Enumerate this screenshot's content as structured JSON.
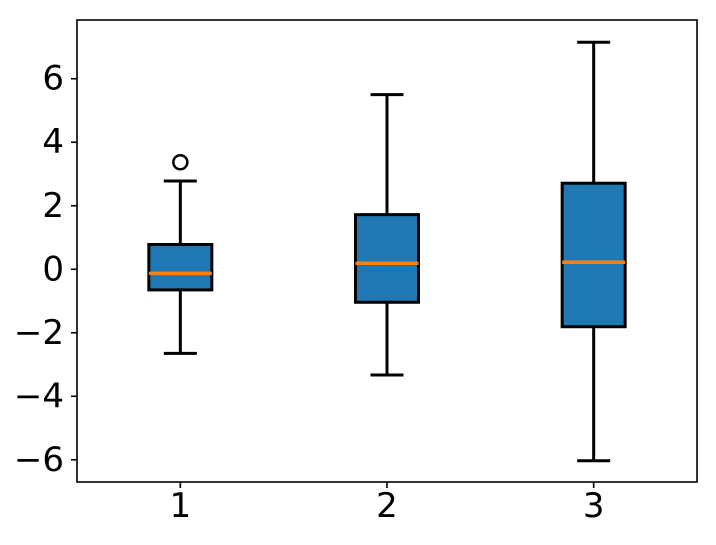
{
  "chart_data": {
    "type": "box",
    "title": "",
    "xlabel": "",
    "ylabel": "",
    "categories": [
      "1",
      "2",
      "3"
    ],
    "yticks": [
      -6,
      -4,
      -2,
      0,
      2,
      4,
      6
    ],
    "ytick_labels": [
      "−6",
      "−4",
      "−2",
      "0",
      "2",
      "4",
      "6"
    ],
    "ylim": [
      -6.7,
      7.85
    ],
    "grid": false,
    "legend": "none",
    "boxes": [
      {
        "label": "1",
        "whislo": -2.65,
        "q1": -0.65,
        "med": -0.13,
        "q3": 0.78,
        "whishi": 2.78,
        "fliers": [
          3.37
        ]
      },
      {
        "label": "2",
        "whislo": -3.33,
        "q1": -1.04,
        "med": 0.19,
        "q3": 1.72,
        "whishi": 5.5,
        "fliers": []
      },
      {
        "label": "3",
        "whislo": -6.03,
        "q1": -1.81,
        "med": 0.22,
        "q3": 2.71,
        "whishi": 7.15,
        "fliers": []
      }
    ],
    "colors": {
      "box_fill": "#1f77b4",
      "box_edge": "#000000",
      "median": "#ff7f0e",
      "whisker": "#000000",
      "flier_edge": "#000000",
      "axis": "#000000",
      "background": "#ffffff"
    }
  }
}
